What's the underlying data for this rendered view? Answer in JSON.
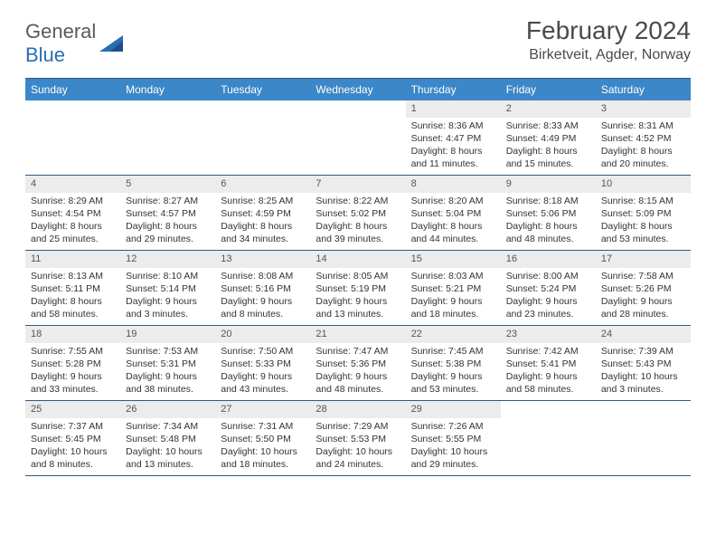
{
  "logo": {
    "text1": "General",
    "text2": "Blue"
  },
  "title": "February 2024",
  "location": "Birketveit, Agder, Norway",
  "colors": {
    "header_bg": "#3b87c8",
    "header_border": "#2a5a8a",
    "daynum_bg": "#ececec",
    "logo_blue": "#2a6cb5"
  },
  "day_names": [
    "Sunday",
    "Monday",
    "Tuesday",
    "Wednesday",
    "Thursday",
    "Friday",
    "Saturday"
  ],
  "weeks": [
    [
      {
        "empty": true
      },
      {
        "empty": true
      },
      {
        "empty": true
      },
      {
        "empty": true
      },
      {
        "n": "1",
        "sunrise": "8:36 AM",
        "sunset": "4:47 PM",
        "daylight": "8 hours and 11 minutes."
      },
      {
        "n": "2",
        "sunrise": "8:33 AM",
        "sunset": "4:49 PM",
        "daylight": "8 hours and 15 minutes."
      },
      {
        "n": "3",
        "sunrise": "8:31 AM",
        "sunset": "4:52 PM",
        "daylight": "8 hours and 20 minutes."
      }
    ],
    [
      {
        "n": "4",
        "sunrise": "8:29 AM",
        "sunset": "4:54 PM",
        "daylight": "8 hours and 25 minutes."
      },
      {
        "n": "5",
        "sunrise": "8:27 AM",
        "sunset": "4:57 PM",
        "daylight": "8 hours and 29 minutes."
      },
      {
        "n": "6",
        "sunrise": "8:25 AM",
        "sunset": "4:59 PM",
        "daylight": "8 hours and 34 minutes."
      },
      {
        "n": "7",
        "sunrise": "8:22 AM",
        "sunset": "5:02 PM",
        "daylight": "8 hours and 39 minutes."
      },
      {
        "n": "8",
        "sunrise": "8:20 AM",
        "sunset": "5:04 PM",
        "daylight": "8 hours and 44 minutes."
      },
      {
        "n": "9",
        "sunrise": "8:18 AM",
        "sunset": "5:06 PM",
        "daylight": "8 hours and 48 minutes."
      },
      {
        "n": "10",
        "sunrise": "8:15 AM",
        "sunset": "5:09 PM",
        "daylight": "8 hours and 53 minutes."
      }
    ],
    [
      {
        "n": "11",
        "sunrise": "8:13 AM",
        "sunset": "5:11 PM",
        "daylight": "8 hours and 58 minutes."
      },
      {
        "n": "12",
        "sunrise": "8:10 AM",
        "sunset": "5:14 PM",
        "daylight": "9 hours and 3 minutes."
      },
      {
        "n": "13",
        "sunrise": "8:08 AM",
        "sunset": "5:16 PM",
        "daylight": "9 hours and 8 minutes."
      },
      {
        "n": "14",
        "sunrise": "8:05 AM",
        "sunset": "5:19 PM",
        "daylight": "9 hours and 13 minutes."
      },
      {
        "n": "15",
        "sunrise": "8:03 AM",
        "sunset": "5:21 PM",
        "daylight": "9 hours and 18 minutes."
      },
      {
        "n": "16",
        "sunrise": "8:00 AM",
        "sunset": "5:24 PM",
        "daylight": "9 hours and 23 minutes."
      },
      {
        "n": "17",
        "sunrise": "7:58 AM",
        "sunset": "5:26 PM",
        "daylight": "9 hours and 28 minutes."
      }
    ],
    [
      {
        "n": "18",
        "sunrise": "7:55 AM",
        "sunset": "5:28 PM",
        "daylight": "9 hours and 33 minutes."
      },
      {
        "n": "19",
        "sunrise": "7:53 AM",
        "sunset": "5:31 PM",
        "daylight": "9 hours and 38 minutes."
      },
      {
        "n": "20",
        "sunrise": "7:50 AM",
        "sunset": "5:33 PM",
        "daylight": "9 hours and 43 minutes."
      },
      {
        "n": "21",
        "sunrise": "7:47 AM",
        "sunset": "5:36 PM",
        "daylight": "9 hours and 48 minutes."
      },
      {
        "n": "22",
        "sunrise": "7:45 AM",
        "sunset": "5:38 PM",
        "daylight": "9 hours and 53 minutes."
      },
      {
        "n": "23",
        "sunrise": "7:42 AM",
        "sunset": "5:41 PM",
        "daylight": "9 hours and 58 minutes."
      },
      {
        "n": "24",
        "sunrise": "7:39 AM",
        "sunset": "5:43 PM",
        "daylight": "10 hours and 3 minutes."
      }
    ],
    [
      {
        "n": "25",
        "sunrise": "7:37 AM",
        "sunset": "5:45 PM",
        "daylight": "10 hours and 8 minutes."
      },
      {
        "n": "26",
        "sunrise": "7:34 AM",
        "sunset": "5:48 PM",
        "daylight": "10 hours and 13 minutes."
      },
      {
        "n": "27",
        "sunrise": "7:31 AM",
        "sunset": "5:50 PM",
        "daylight": "10 hours and 18 minutes."
      },
      {
        "n": "28",
        "sunrise": "7:29 AM",
        "sunset": "5:53 PM",
        "daylight": "10 hours and 24 minutes."
      },
      {
        "n": "29",
        "sunrise": "7:26 AM",
        "sunset": "5:55 PM",
        "daylight": "10 hours and 29 minutes."
      },
      {
        "empty": true
      },
      {
        "empty": true
      }
    ]
  ],
  "labels": {
    "sunrise": "Sunrise:",
    "sunset": "Sunset:",
    "daylight": "Daylight:"
  }
}
